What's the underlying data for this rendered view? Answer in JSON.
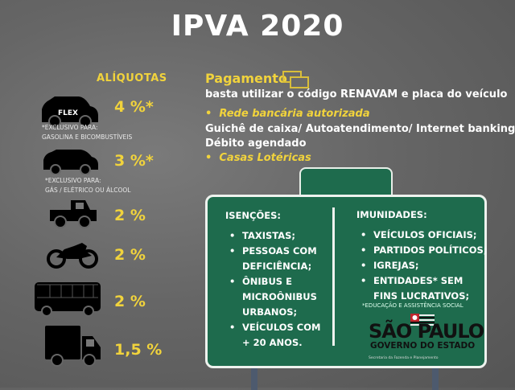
{
  "title": "IPVA 2020",
  "aliquotas": {
    "heading": "ALÍQUOTAS",
    "items": [
      {
        "icon": "flex-car-icon",
        "badge": "FLEX",
        "rate": "4 %*",
        "note": [
          "*EXCLUSIVO PARA:",
          "GASOLINA E BICOMBUSTÍVEIS"
        ]
      },
      {
        "icon": "car-icon",
        "rate": "3 %*",
        "note": [
          "*EXCLUSIVO PARA:",
          "GÁS / ELÉTRICO OU ÁLCOOL"
        ]
      },
      {
        "icon": "pickup-truck-icon",
        "rate": "2 %"
      },
      {
        "icon": "motorcycle-icon",
        "rate": "2 %"
      },
      {
        "icon": "bus-icon",
        "rate": "2 %"
      },
      {
        "icon": "truck-icon",
        "rate": "1,5 %"
      }
    ]
  },
  "pagamento": {
    "heading": "Pagamento",
    "icon": "money-icon",
    "line1": "basta utilizar o código RENAVAM e placa do veículo",
    "bullet1": "Rede bancária autorizada",
    "line2": "Guichê de caixa/ Autoatendimento/ Internet banking/",
    "line3": "Débito agendado",
    "bullet2": "Casas Lotéricas"
  },
  "sign": {
    "isencoes": {
      "heading": "ISENÇÕES:",
      "lines": [
        "TAXISTAS;",
        "PESSOAS COM",
        "DEFICIÊNCIA;",
        "ÔNIBUS E",
        "MICROÔNIBUS",
        "URBANOS;",
        "VEÍCULOS COM",
        "+ 20 ANOS."
      ]
    },
    "imunidades": {
      "heading": "IMUNIDADES:",
      "lines": [
        "VEÍCULOS OFICIAIS;",
        "PARTIDOS POLÍTICOS;",
        "IGREJAS;",
        "ENTIDADES* SEM",
        "FINS LUCRATIVOS;"
      ],
      "note": "*EDUCAÇÃO E ASSISTÊNCIA SOCIAL"
    },
    "logo": {
      "line1": "SÃO PAULO",
      "line2": "GOVERNO DO ESTADO",
      "sub": "Secretaria da Fazenda e Planejamento"
    }
  },
  "colors": {
    "accent": "#f1d33c",
    "sign": "#1e6b4d",
    "background": "#666666"
  }
}
